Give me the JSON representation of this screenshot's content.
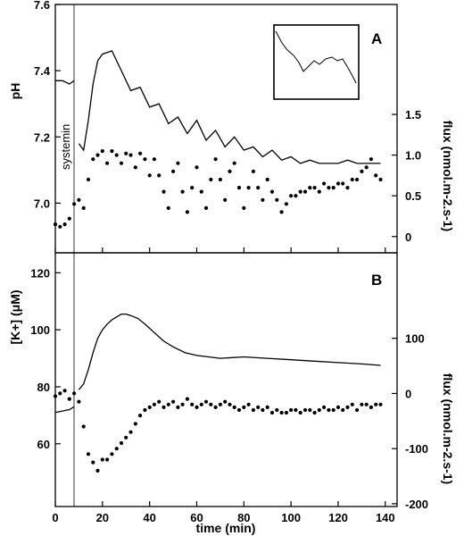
{
  "chart_data": [
    {
      "panel": "A",
      "type": "line",
      "xlabel": "time (min)",
      "xlim": [
        0,
        145
      ],
      "ylabel_left": "pH",
      "ylim_left": [
        6.85,
        7.6
      ],
      "yticks_left": [
        "7.6",
        "7.4",
        "7.2",
        "7.0"
      ],
      "ylabel_right": "flux (nmol.m-2.s-1)",
      "ylim_right": [
        -0.2,
        2.85
      ],
      "yticks_right": [
        "1.5",
        "1.0",
        "0.5",
        "0"
      ],
      "annotation": "systemin",
      "annotation_x": 8,
      "inset": true,
      "series": [
        {
          "axis": "left",
          "style": "line",
          "x": [
            0,
            3,
            6,
            8,
            null,
            10,
            12,
            14,
            16,
            18,
            20,
            24,
            28,
            32,
            36,
            40,
            44,
            48,
            52,
            56,
            60,
            64,
            68,
            72,
            76,
            80,
            84,
            88,
            92,
            96,
            100,
            104,
            108,
            112,
            116,
            120,
            124,
            128,
            132,
            136,
            138
          ],
          "y": [
            7.37,
            7.37,
            7.36,
            7.37,
            null,
            7.18,
            7.16,
            7.25,
            7.36,
            7.43,
            7.45,
            7.46,
            7.4,
            7.34,
            7.35,
            7.29,
            7.3,
            7.24,
            7.26,
            7.21,
            7.25,
            7.19,
            7.22,
            7.17,
            7.2,
            7.16,
            7.17,
            7.14,
            7.16,
            7.13,
            7.14,
            7.12,
            7.13,
            7.12,
            7.12,
            7.12,
            7.13,
            7.12,
            7.12,
            7.12,
            7.12
          ]
        },
        {
          "axis": "right",
          "style": "dots",
          "x": [
            0,
            2,
            4,
            6,
            8,
            10,
            12,
            14,
            16,
            18,
            20,
            22,
            24,
            26,
            28,
            30,
            32,
            34,
            36,
            38,
            40,
            42,
            44,
            46,
            48,
            50,
            52,
            54,
            56,
            58,
            60,
            62,
            64,
            66,
            68,
            70,
            72,
            74,
            76,
            78,
            80,
            82,
            84,
            86,
            88,
            90,
            92,
            94,
            96,
            98,
            100,
            102,
            104,
            106,
            108,
            110,
            112,
            114,
            116,
            118,
            120,
            122,
            124,
            126,
            128,
            130,
            132,
            134,
            136,
            138
          ],
          "y": [
            0.15,
            0.12,
            0.15,
            0.22,
            0.4,
            0.45,
            0.35,
            0.7,
            0.95,
            1.0,
            1.05,
            0.9,
            1.05,
            1.0,
            0.9,
            1.02,
            1.0,
            0.85,
            1.02,
            0.95,
            0.75,
            0.95,
            0.75,
            0.55,
            0.35,
            0.8,
            0.9,
            0.55,
            0.3,
            0.6,
            0.85,
            0.55,
            0.35,
            0.7,
            0.95,
            0.7,
            0.45,
            0.8,
            0.9,
            0.6,
            0.35,
            0.6,
            0.8,
            0.6,
            0.45,
            0.7,
            0.55,
            0.45,
            0.3,
            0.4,
            0.5,
            0.5,
            0.55,
            0.55,
            0.6,
            0.6,
            0.55,
            0.65,
            0.6,
            0.6,
            0.65,
            0.65,
            0.6,
            0.7,
            0.7,
            0.8,
            0.85,
            0.95,
            0.75,
            0.7
          ]
        }
      ]
    },
    {
      "panel": "B",
      "type": "line",
      "xlabel": "time (min)",
      "xlim": [
        0,
        145
      ],
      "xticks": [
        "0",
        "20",
        "40",
        "60",
        "80",
        "100",
        "120",
        "140"
      ],
      "ylabel_left": "[K+] (μM)",
      "ylim_left": [
        38,
        127
      ],
      "yticks_left": [
        "120",
        "100",
        "80",
        "60"
      ],
      "ylabel_right": "flux (nmol.m-2.s-1)",
      "ylim_right": [
        -205,
        255
      ],
      "yticks_right": [
        "100",
        "0",
        "-100",
        "-200"
      ],
      "series": [
        {
          "axis": "left",
          "style": "line",
          "x": [
            0,
            3,
            6,
            8,
            null,
            10,
            12,
            14,
            16,
            18,
            20,
            22,
            24,
            26,
            28,
            30,
            32,
            35,
            38,
            42,
            46,
            50,
            55,
            60,
            65,
            70,
            80,
            90,
            100,
            110,
            120,
            130,
            138
          ],
          "y": [
            71,
            71.5,
            72,
            73,
            null,
            79,
            81,
            86,
            92,
            97,
            100,
            102,
            103.5,
            104.5,
            105.5,
            105.5,
            105,
            104,
            102,
            99,
            96,
            94,
            92,
            91,
            90.5,
            90,
            90.5,
            90,
            89.5,
            89,
            88.5,
            88,
            87.5
          ]
        },
        {
          "axis": "right",
          "style": "dots",
          "x": [
            0,
            2,
            4,
            6,
            8,
            10,
            12,
            14,
            16,
            18,
            20,
            22,
            24,
            26,
            28,
            30,
            32,
            34,
            36,
            38,
            40,
            42,
            44,
            46,
            48,
            50,
            52,
            54,
            56,
            58,
            60,
            62,
            64,
            66,
            68,
            70,
            72,
            74,
            76,
            78,
            80,
            82,
            84,
            86,
            88,
            90,
            92,
            94,
            96,
            98,
            100,
            102,
            104,
            106,
            108,
            110,
            112,
            114,
            116,
            118,
            120,
            122,
            124,
            126,
            128,
            130,
            132,
            134,
            136,
            138
          ],
          "y": [
            -5,
            0,
            5,
            -10,
            0,
            -15,
            -60,
            -110,
            -125,
            -140,
            -120,
            -120,
            -110,
            -100,
            -90,
            -80,
            -70,
            -55,
            -40,
            -30,
            -25,
            -20,
            -15,
            -25,
            -20,
            -15,
            -25,
            -20,
            -10,
            -20,
            -25,
            -20,
            -15,
            -20,
            -25,
            -20,
            -15,
            -20,
            -25,
            -30,
            -25,
            -20,
            -30,
            -25,
            -30,
            -25,
            -35,
            -30,
            -35,
            -35,
            -30,
            -30,
            -35,
            -30,
            -30,
            -35,
            -30,
            -25,
            -30,
            -30,
            -25,
            -30,
            -25,
            -20,
            -30,
            -20,
            -20,
            -25,
            -20,
            -20
          ]
        }
      ]
    }
  ]
}
